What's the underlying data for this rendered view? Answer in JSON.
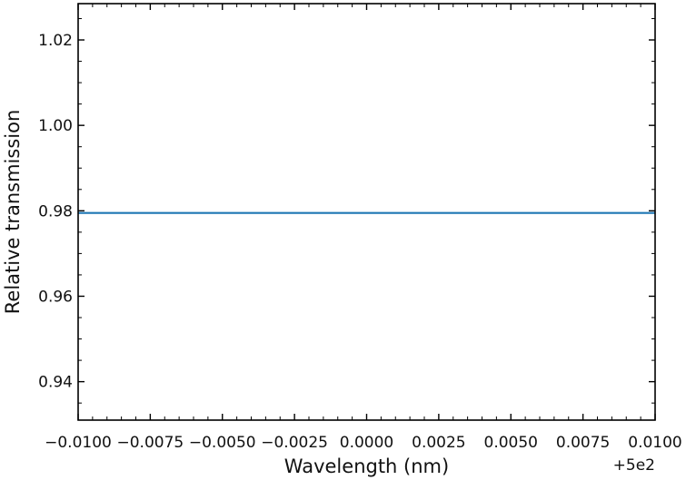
{
  "chart_data": {
    "type": "line",
    "xlabel": "Wavelength (nm)",
    "ylabel": "Relative transmission",
    "x_offset_label": "+5e2",
    "xlim": [
      -0.01,
      0.01
    ],
    "ylim": [
      0.931,
      1.0285
    ],
    "x_ticks": [
      -0.01,
      -0.0075,
      -0.005,
      -0.0025,
      0.0,
      0.0025,
      0.005,
      0.0075,
      0.01
    ],
    "x_tick_labels": [
      "−0.0100",
      "−0.0075",
      "−0.0050",
      "−0.0025",
      "0.0000",
      "0.0025",
      "0.0050",
      "0.0075",
      "0.0100"
    ],
    "y_ticks": [
      0.94,
      0.96,
      0.98,
      1.0,
      1.02
    ],
    "y_tick_labels": [
      "0.94",
      "0.96",
      "0.98",
      "1.00",
      "1.02"
    ],
    "grid": false,
    "series": [
      {
        "color": "#1f77b4",
        "x": [
          -0.01,
          0.01
        ],
        "y": [
          0.9795,
          0.9795
        ]
      }
    ]
  }
}
